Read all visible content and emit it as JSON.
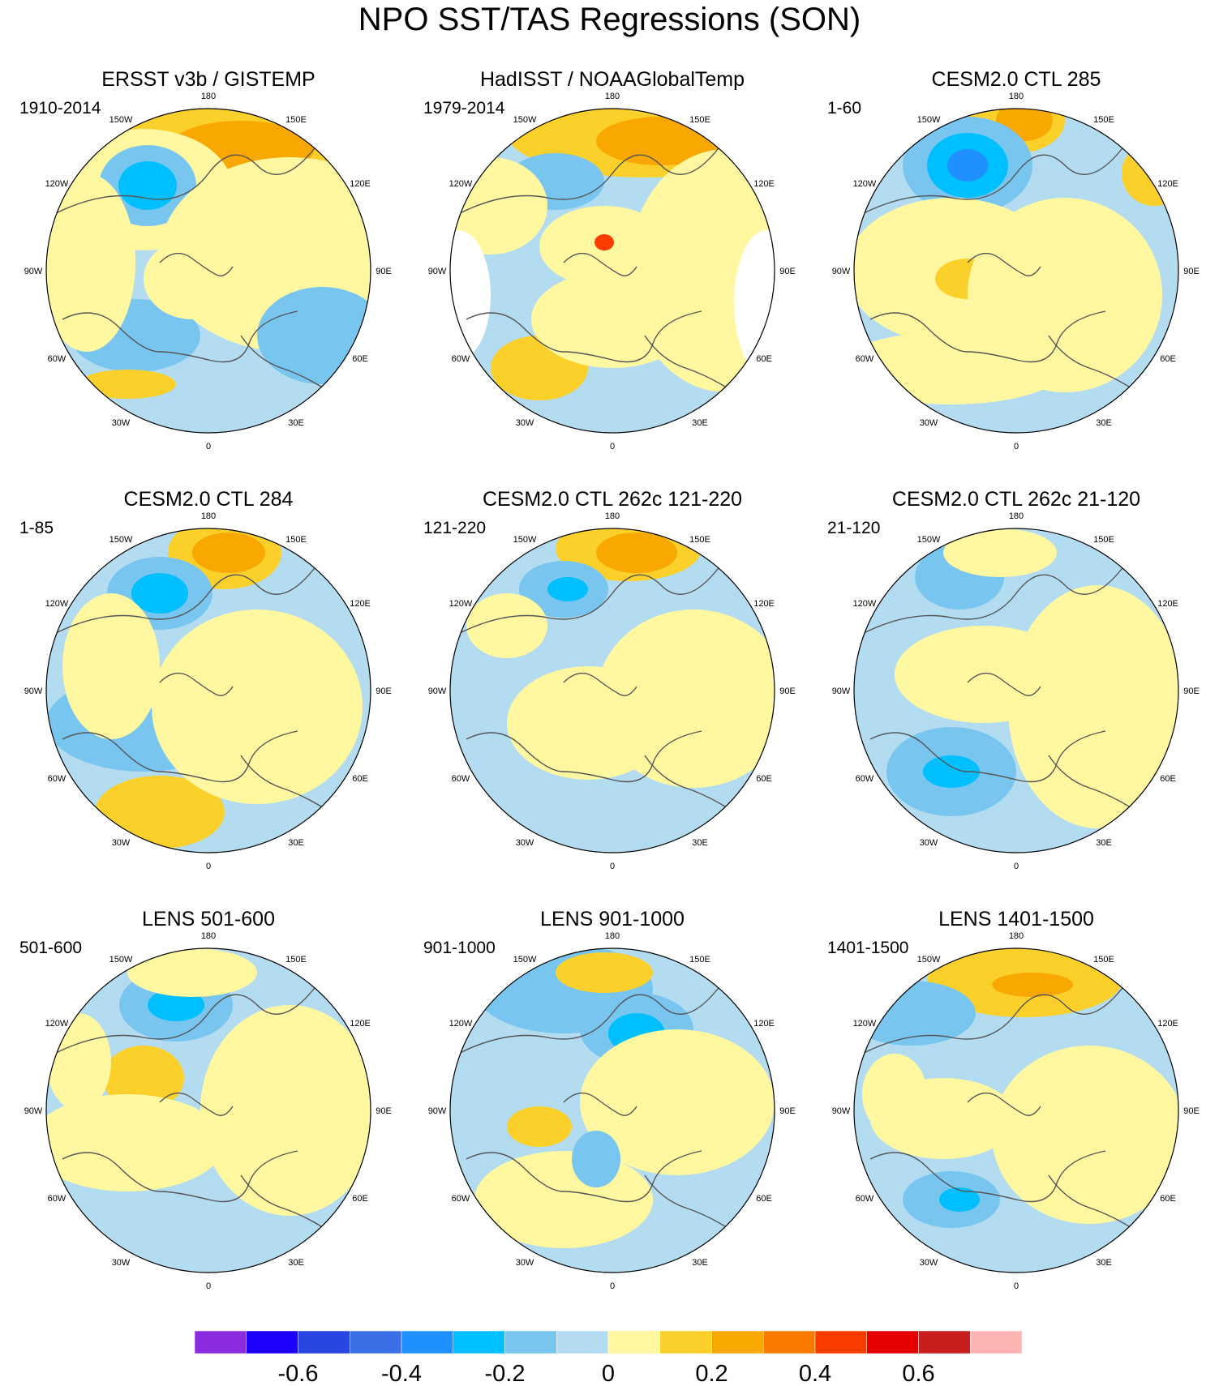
{
  "title": "NPO SST/TAS Regressions (SON)",
  "lon_labels": [
    "180",
    "150E",
    "120E",
    "90E",
    "60E",
    "30E",
    "0",
    "30W",
    "60W",
    "90W",
    "120W",
    "150W"
  ],
  "panels": [
    {
      "title": "ERSST v3b / GISTEMP",
      "years": "1910-2014"
    },
    {
      "title": "HadISST / NOAAGlobalTemp",
      "years": "1979-2014"
    },
    {
      "title": "CESM2.0 CTL 285",
      "years": "1-60"
    },
    {
      "title": "CESM2.0 CTL 284",
      "years": "1-85"
    },
    {
      "title": "CESM2.0 CTL 262c 121-220",
      "years": "121-220"
    },
    {
      "title": "CESM2.0 CTL 262c 21-120",
      "years": "21-120"
    },
    {
      "title": "LENS 501-600",
      "years": "501-600"
    },
    {
      "title": "LENS 901-1000",
      "years": "901-1000"
    },
    {
      "title": "LENS 1401-1500",
      "years": "1401-1500"
    }
  ],
  "colorbar": {
    "colors": [
      "#8a2be2",
      "#1e00ff",
      "#2a46e0",
      "#3a6fe8",
      "#2090ff",
      "#00bfff",
      "#78c6f0",
      "#b4dcf0",
      "#fff8a0",
      "#fbd02a",
      "#f8a800",
      "#f87800",
      "#fa3c00",
      "#e60000",
      "#c81e1e",
      "#ffb4b4"
    ],
    "labels": [
      "-0.6",
      "-0.4",
      "-0.2",
      "0",
      "0.2",
      "0.4",
      "0.6"
    ]
  }
}
